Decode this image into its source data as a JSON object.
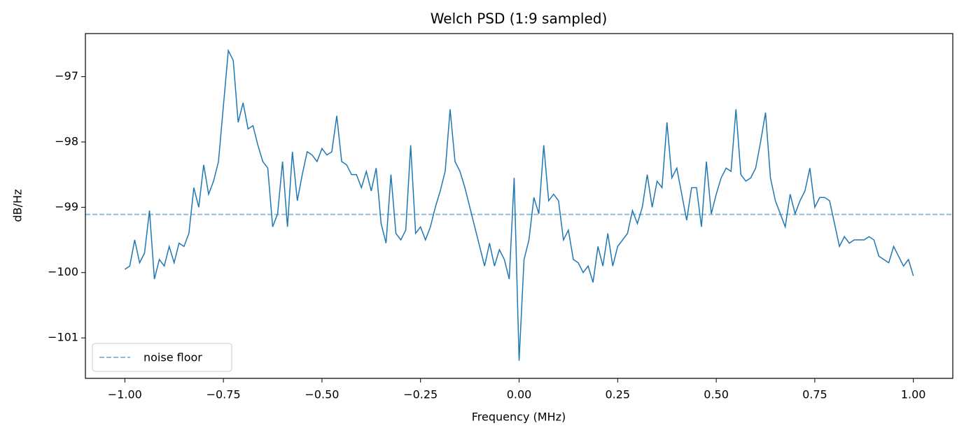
{
  "chart_data": {
    "type": "line",
    "title": "Welch PSD (1:9 sampled)",
    "xlabel": "Frequency (MHz)",
    "ylabel": "dB/Hz",
    "xlim": [
      -1.1,
      1.1
    ],
    "ylim": [
      -101.62,
      -96.34
    ],
    "xticks": [
      {
        "value": -1.0,
        "label": "−1.00"
      },
      {
        "value": -0.75,
        "label": "−0.75"
      },
      {
        "value": -0.5,
        "label": "−0.50"
      },
      {
        "value": -0.25,
        "label": "−0.25"
      },
      {
        "value": 0,
        "label": "0.00"
      },
      {
        "value": 0.25,
        "label": "0.25"
      },
      {
        "value": 0.5,
        "label": "0.50"
      },
      {
        "value": 0.75,
        "label": "0.75"
      },
      {
        "value": 1.0,
        "label": "1.00"
      }
    ],
    "yticks": [
      {
        "value": -101,
        "label": "−101"
      },
      {
        "value": -100,
        "label": "−100"
      },
      {
        "value": -99,
        "label": "−99"
      },
      {
        "value": -98,
        "label": "−98"
      },
      {
        "value": -97,
        "label": "−97"
      }
    ],
    "grid": false,
    "legend": "lower left",
    "x": [
      -1.0,
      -0.9875,
      -0.975,
      -0.9625,
      -0.95,
      -0.9375,
      -0.925,
      -0.9125,
      -0.9,
      -0.8875,
      -0.875,
      -0.8625,
      -0.85,
      -0.8375,
      -0.825,
      -0.8125,
      -0.8,
      -0.7875,
      -0.775,
      -0.7625,
      -0.75,
      -0.7375,
      -0.725,
      -0.7125,
      -0.7,
      -0.6875,
      -0.675,
      -0.6625,
      -0.65,
      -0.6375,
      -0.625,
      -0.6125,
      -0.6,
      -0.5875,
      -0.575,
      -0.5625,
      -0.55,
      -0.5375,
      -0.525,
      -0.5125,
      -0.5,
      -0.4875,
      -0.475,
      -0.4625,
      -0.45,
      -0.4375,
      -0.425,
      -0.4125,
      -0.4,
      -0.3875,
      -0.375,
      -0.3625,
      -0.35,
      -0.3375,
      -0.325,
      -0.3125,
      -0.3,
      -0.2875,
      -0.275,
      -0.2625,
      -0.25,
      -0.2375,
      -0.225,
      -0.2125,
      -0.2,
      -0.1875,
      -0.175,
      -0.1625,
      -0.15,
      -0.1375,
      -0.125,
      -0.1125,
      -0.1,
      -0.0875,
      -0.075,
      -0.0625,
      -0.05,
      -0.0375,
      -0.025,
      -0.0125,
      0,
      0.0125,
      0.025,
      0.0375,
      0.05,
      0.0625,
      0.075,
      0.0875,
      0.1,
      0.1125,
      0.125,
      0.1375,
      0.15,
      0.1625,
      0.175,
      0.1875,
      0.2,
      0.2125,
      0.225,
      0.2375,
      0.25,
      0.2625,
      0.275,
      0.2875,
      0.3,
      0.3125,
      0.325,
      0.3375,
      0.35,
      0.3625,
      0.375,
      0.3875,
      0.4,
      0.4125,
      0.425,
      0.4375,
      0.45,
      0.4625,
      0.475,
      0.4875,
      0.5,
      0.5125,
      0.525,
      0.5375,
      0.55,
      0.5625,
      0.575,
      0.5875,
      0.6,
      0.6125,
      0.625,
      0.6375,
      0.65,
      0.6625,
      0.675,
      0.6875,
      0.7,
      0.7125,
      0.725,
      0.7375,
      0.75,
      0.7625,
      0.775,
      0.7875,
      0.8,
      0.8125,
      0.825,
      0.8375,
      0.85,
      0.8625,
      0.875,
      0.8875,
      0.9,
      0.9125,
      0.925,
      0.9375,
      0.95,
      0.9625,
      0.975,
      0.9875,
      1.0
    ],
    "series": [
      {
        "color": "#1f77b4",
        "values": [
          -99.95,
          -99.9,
          -99.5,
          -99.85,
          -99.7,
          -99.05,
          -100.1,
          -99.8,
          -99.9,
          -99.6,
          -99.85,
          -99.55,
          -99.6,
          -99.4,
          -98.7,
          -99.0,
          -98.35,
          -98.8,
          -98.6,
          -98.3,
          -97.45,
          -96.6,
          -96.75,
          -97.7,
          -97.4,
          -97.8,
          -97.75,
          -98.05,
          -98.3,
          -98.4,
          -99.3,
          -99.1,
          -98.3,
          -99.3,
          -98.15,
          -98.9,
          -98.5,
          -98.15,
          -98.2,
          -98.3,
          -98.1,
          -98.2,
          -98.15,
          -97.6,
          -98.3,
          -98.35,
          -98.5,
          -98.5,
          -98.7,
          -98.45,
          -98.75,
          -98.4,
          -99.25,
          -99.55,
          -98.5,
          -99.4,
          -99.5,
          -99.35,
          -98.05,
          -99.4,
          -99.3,
          -99.5,
          -99.3,
          -99.0,
          -98.75,
          -98.45,
          -97.5,
          -98.3,
          -98.45,
          -98.7,
          -99.0,
          -99.3,
          -99.6,
          -99.9,
          -99.55,
          -99.9,
          -99.65,
          -99.8,
          -100.1,
          -98.55,
          -101.35,
          -99.8,
          -99.5,
          -98.85,
          -99.1,
          -98.05,
          -98.9,
          -98.8,
          -98.9,
          -99.5,
          -99.35,
          -99.8,
          -99.85,
          -100.0,
          -99.9,
          -100.15,
          -99.6,
          -99.9,
          -99.4,
          -99.9,
          -99.6,
          -99.5,
          -99.4,
          -99.05,
          -99.25,
          -99.0,
          -98.5,
          -99.0,
          -98.6,
          -98.7,
          -97.7,
          -98.55,
          -98.4,
          -98.8,
          -99.2,
          -98.7,
          -98.7,
          -99.3,
          -98.3,
          -99.1,
          -98.8,
          -98.55,
          -98.4,
          -98.45,
          -97.5,
          -98.5,
          -98.6,
          -98.55,
          -98.4,
          -98.0,
          -97.55,
          -98.55,
          -98.9,
          -99.1,
          -99.3,
          -98.8,
          -99.1,
          -98.9,
          -98.75,
          -98.4,
          -99.0,
          -98.85,
          -98.85,
          -98.9,
          -99.25,
          -99.6,
          -99.45,
          -99.55,
          -99.5,
          -99.5,
          -99.5,
          -99.45,
          -99.5,
          -99.75,
          -99.8,
          -99.85,
          -99.6,
          -99.75,
          -99.9,
          -99.8,
          -100.05
        ]
      }
    ],
    "noise_floor": {
      "name": "noise floor",
      "value": -99.11,
      "color": "#1f77b4"
    }
  }
}
